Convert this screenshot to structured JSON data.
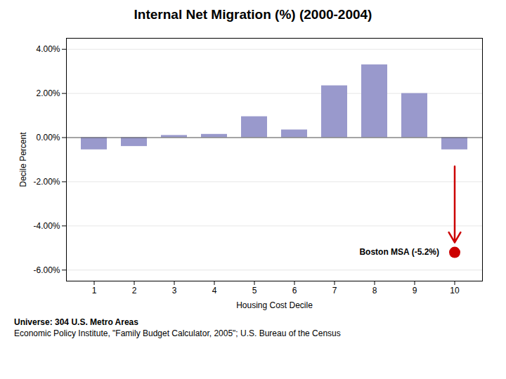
{
  "chart_data": {
    "type": "bar",
    "title": "Internal Net Migration (%) (2000-2004)",
    "xlabel": "Housing Cost Decile",
    "ylabel": "Decile Percent",
    "categories": [
      1,
      2,
      3,
      4,
      5,
      6,
      7,
      8,
      9,
      10
    ],
    "values": [
      -0.55,
      -0.4,
      0.1,
      0.15,
      0.95,
      0.35,
      2.35,
      3.3,
      2.0,
      -0.55
    ],
    "color": "#9999cc",
    "ylim": [
      -6.5,
      4.5
    ],
    "yticks": [
      {
        "value": -6.0,
        "label": "-6.00%"
      },
      {
        "value": -4.0,
        "label": "-4.00%"
      },
      {
        "value": -2.0,
        "label": "-2.00%"
      },
      {
        "value": 0.0,
        "label": "0.00%"
      },
      {
        "value": 2.0,
        "label": "2.00%"
      },
      {
        "value": 4.0,
        "label": "4.00%"
      }
    ],
    "grid": true,
    "annotations": [
      {
        "text": "Boston MSA (-5.2%)",
        "x": 10,
        "y": -5.2,
        "arrow_from": -1.3,
        "arrow_to": -4.75,
        "color": "#cc0000"
      }
    ],
    "notes": [
      "Universe: 304 U.S. Metro Areas",
      "Economic Policy Institute, \"Family Budget Calculator, 2005\"; U.S. Bureau of the Census"
    ]
  }
}
